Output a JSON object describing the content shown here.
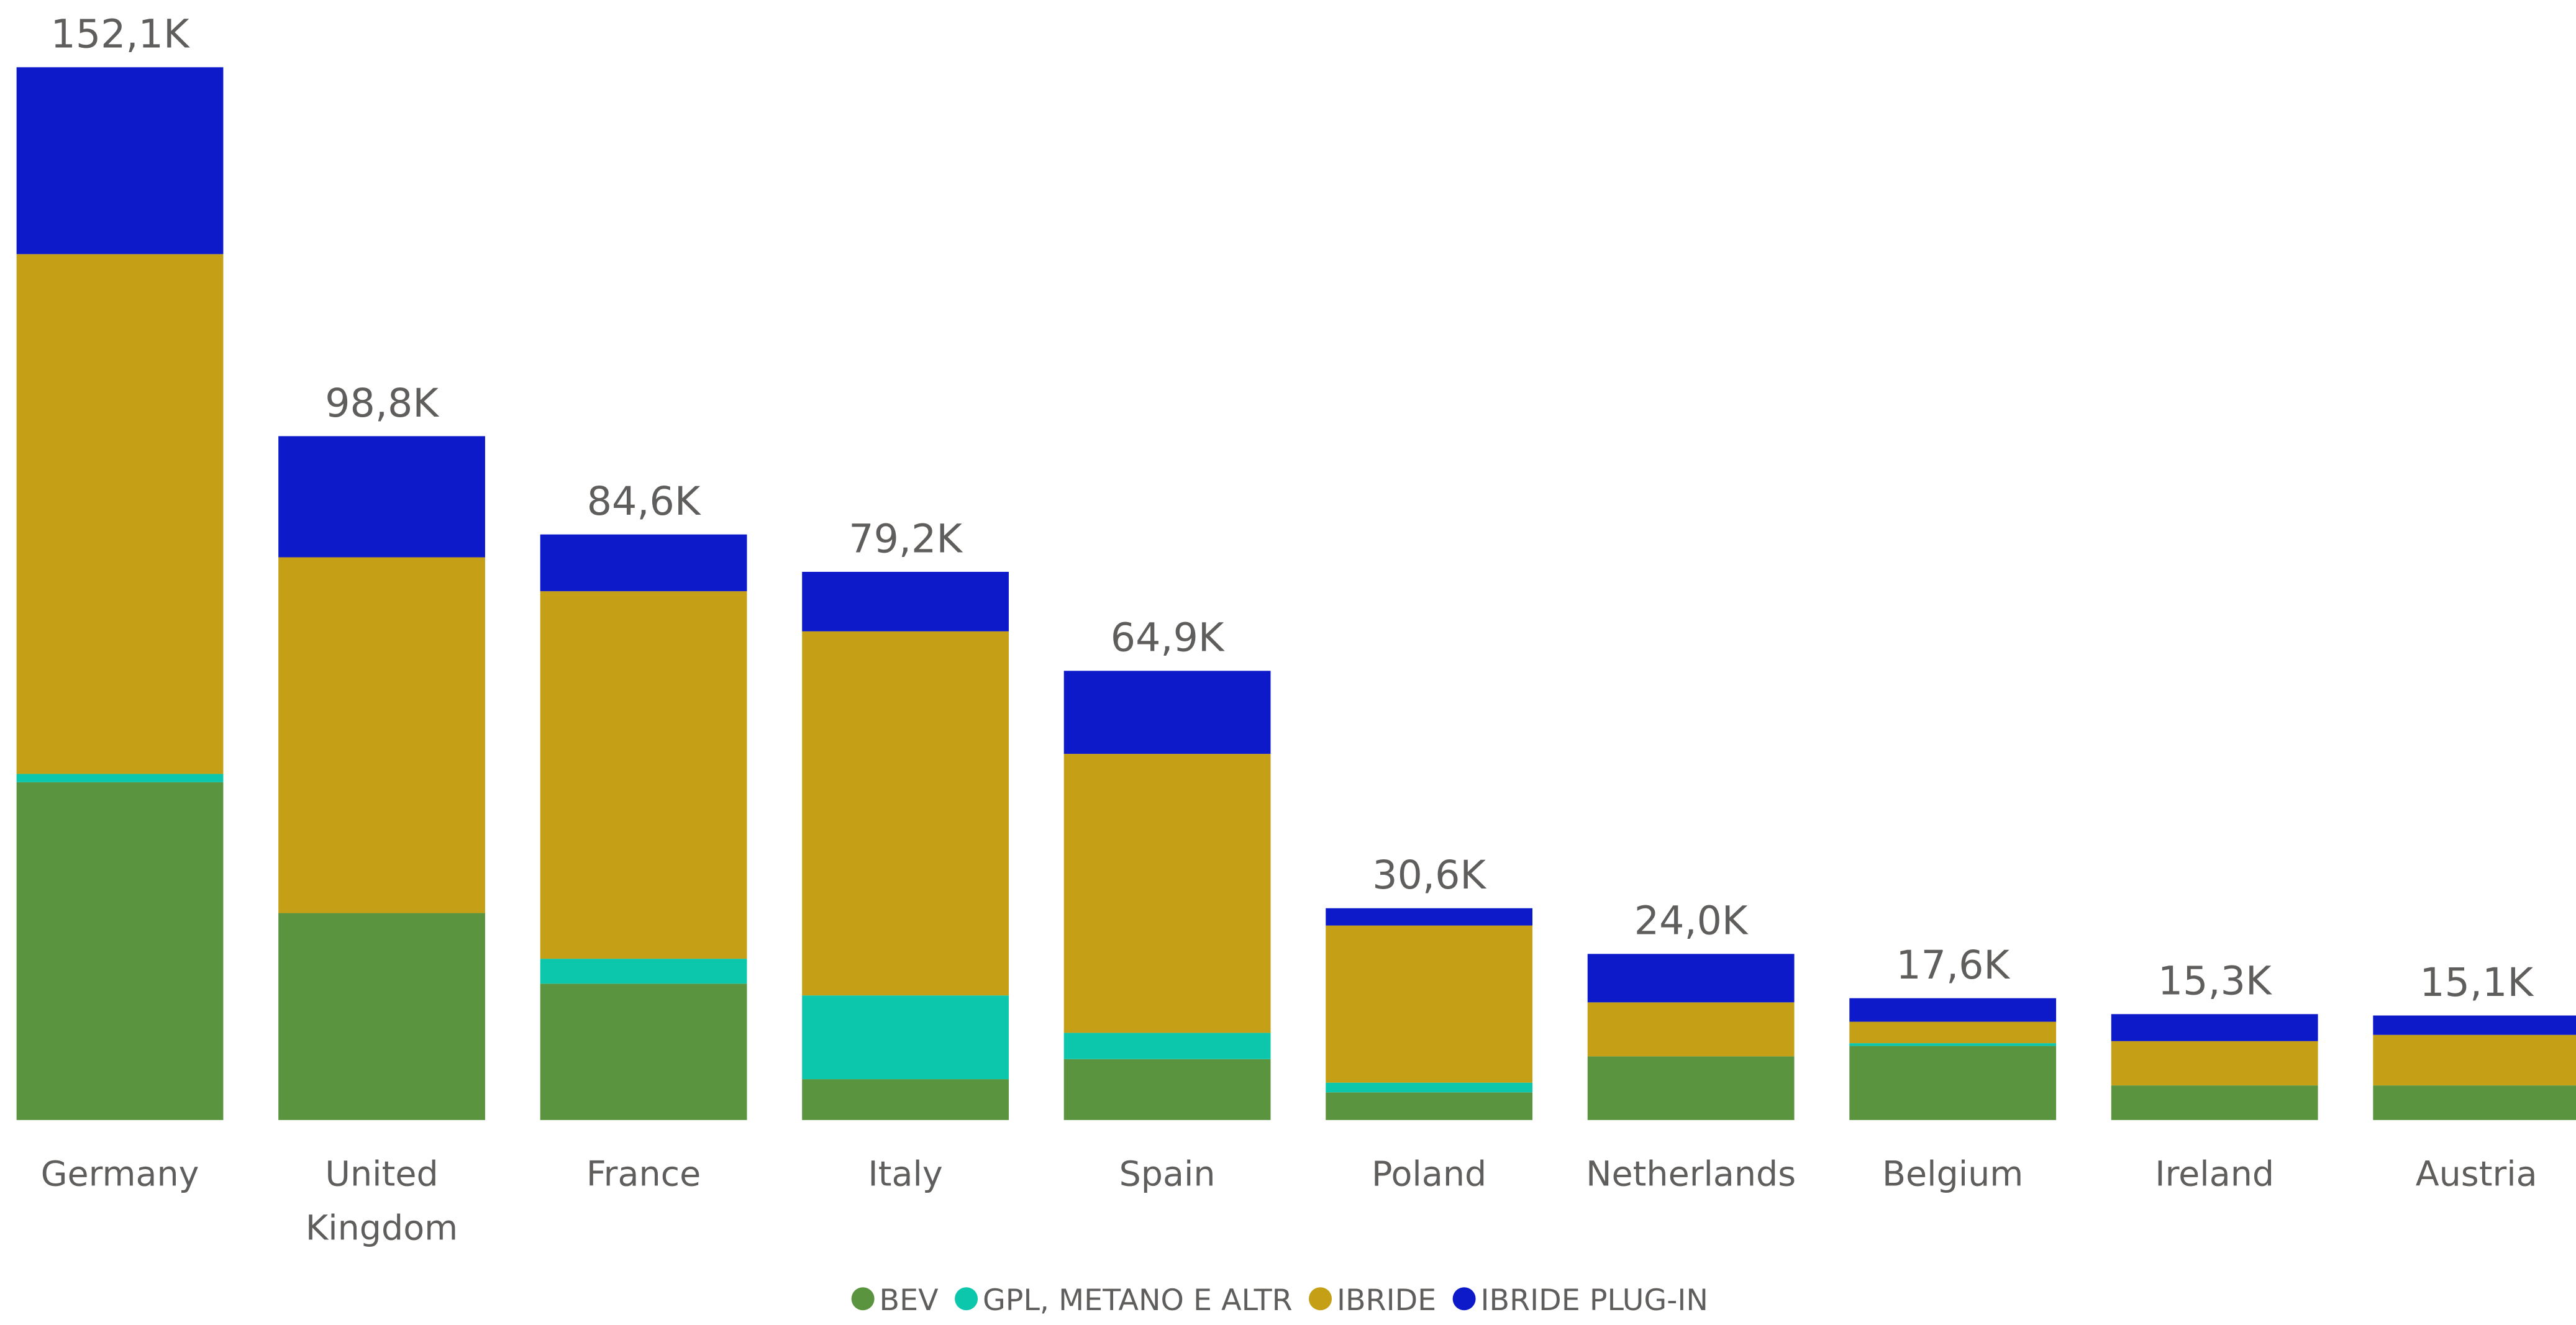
{
  "chart_data": {
    "type": "stacked-bar",
    "categories": [
      "Germany",
      "United Kingdom",
      "France",
      "Italy",
      "Spain",
      "Poland",
      "Netherlands",
      "Belgium",
      "Ireland",
      "Austria"
    ],
    "series": [
      {
        "name": "BEV",
        "color": "#5b943f",
        "values": [
          48800,
          29900,
          19700,
          5900,
          8800,
          4000,
          9200,
          10700,
          5000,
          5000
        ]
      },
      {
        "name": "GPL, METANO E ALTR",
        "color": "#0dc7ad",
        "values": [
          1200,
          0,
          3600,
          12100,
          3800,
          1400,
          0,
          400,
          0,
          0
        ]
      },
      {
        "name": "IBRIDE",
        "color": "#c59f16",
        "values": [
          75100,
          51400,
          53100,
          52600,
          40300,
          22700,
          7800,
          3100,
          6400,
          7300
        ]
      },
      {
        "name": "IBRIDE PLUG-IN",
        "color": "#0c1ac9",
        "values": [
          27000,
          17500,
          8200,
          8600,
          12000,
          2500,
          7000,
          3400,
          3900,
          2800
        ]
      }
    ],
    "totals": [
      152100,
      98800,
      84600,
      79200,
      64900,
      30600,
      24000,
      17600,
      15300,
      15100
    ],
    "total_labels": [
      "152,1K",
      "98,8K",
      "84,6K",
      "79,2K",
      "64,9K",
      "30,6K",
      "24,0K",
      "17,6K",
      "15,3K",
      "15,1K"
    ]
  }
}
